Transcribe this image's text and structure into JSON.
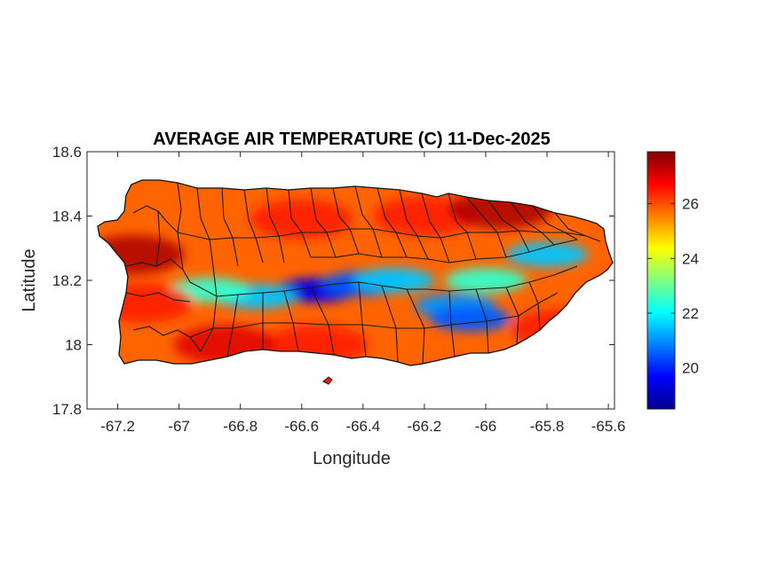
{
  "chart_data": {
    "type": "heatmap",
    "title": "AVERAGE AIR TEMPERATURE (C) 11-Dec-2025",
    "xlabel": "Longitude",
    "ylabel": "Latitude",
    "xlim": [
      -67.3,
      -65.58
    ],
    "ylim": [
      17.8,
      18.6
    ],
    "xticks": [
      -67.2,
      -67,
      -66.8,
      -66.6,
      -66.4,
      -66.2,
      -66,
      -65.8,
      -65.6
    ],
    "xtick_labels": [
      "-67.2",
      "-67",
      "-66.8",
      "-66.6",
      "-66.4",
      "-66.2",
      "-66",
      "-65.8",
      "-65.6"
    ],
    "yticks": [
      17.8,
      18,
      18.2,
      18.4,
      18.6
    ],
    "ytick_labels": [
      "17.8",
      "18",
      "18.2",
      "18.4",
      "18.6"
    ],
    "colorbar": {
      "colormap": "jet",
      "range": [
        18.5,
        27.9
      ],
      "ticks": [
        20,
        22,
        24,
        26
      ],
      "tick_labels": [
        "20",
        "22",
        "24",
        "26"
      ]
    },
    "grid": false,
    "temperature_regions": [
      {
        "lon": -66.55,
        "lat": 18.17,
        "value": 19.5
      },
      {
        "lon": -66.4,
        "lat": 18.19,
        "value": 20.5
      },
      {
        "lon": -66.1,
        "lat": 18.12,
        "value": 21.0
      },
      {
        "lon": -66.05,
        "lat": 18.08,
        "value": 20.5
      },
      {
        "lon": -66.75,
        "lat": 18.15,
        "value": 21.5
      },
      {
        "lon": -66.3,
        "lat": 18.2,
        "value": 21.5
      },
      {
        "lon": -65.8,
        "lat": 18.28,
        "value": 21.5
      },
      {
        "lon": -66.9,
        "lat": 18.17,
        "value": 22.5
      },
      {
        "lon": -66.0,
        "lat": 18.2,
        "value": 22.5
      },
      {
        "lon": -66.6,
        "lat": 18.39,
        "value": 26.5
      },
      {
        "lon": -66.2,
        "lat": 18.4,
        "value": 26.5
      },
      {
        "lon": -65.95,
        "lat": 18.42,
        "value": 27.5
      },
      {
        "lon": -67.15,
        "lat": 18.28,
        "value": 27.5
      },
      {
        "lon": -66.55,
        "lat": 18.0,
        "value": 26.5
      },
      {
        "lon": -66.85,
        "lat": 18.0,
        "value": 27.0
      },
      {
        "lon": -67.12,
        "lat": 18.13,
        "value": 26.5
      },
      {
        "lon": -65.75,
        "lat": 18.05,
        "value": 26.5
      }
    ],
    "islands": [
      "Puerto Rico",
      "Caja de Muertos"
    ]
  }
}
